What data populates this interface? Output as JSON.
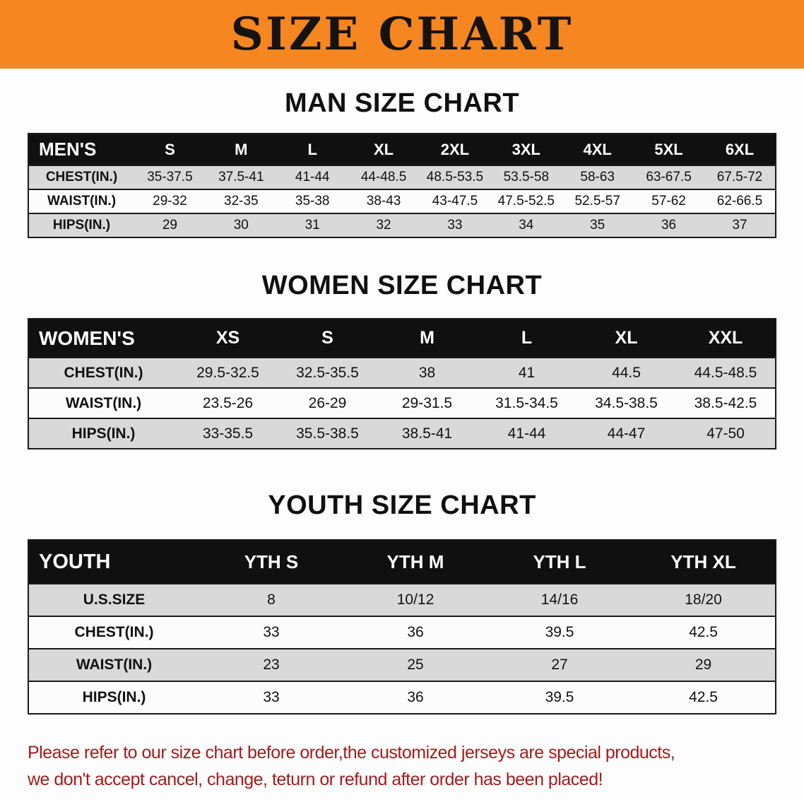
{
  "banner": {
    "title": "SIZE CHART",
    "background_color": "#F6861F",
    "text_color": "#151310"
  },
  "sections": [
    {
      "heading": "MAN SIZE CHART",
      "table": {
        "header_label": "MEN'S",
        "columns": [
          "S",
          "M",
          "L",
          "XL",
          "2XL",
          "3XL",
          "4XL",
          "5XL",
          "6XL"
        ],
        "rows": [
          {
            "label": "CHEST(IN.)",
            "values": [
              "35-37.5",
              "37.5-41",
              "41-44",
              "44-48.5",
              "48.5-53.5",
              "53.5-58",
              "58-63",
              "63-67.5",
              "67.5-72"
            ]
          },
          {
            "label": "WAIST(IN.)",
            "values": [
              "29-32",
              "32-35",
              "35-38",
              "38-43",
              "43-47.5",
              "47.5-52.5",
              "52.5-57",
              "57-62",
              "62-66.5"
            ]
          },
          {
            "label": "HIPS(IN.)",
            "values": [
              "29",
              "30",
              "31",
              "32",
              "33",
              "34",
              "35",
              "36",
              "37"
            ]
          }
        ]
      }
    },
    {
      "heading": "WOMEN SIZE CHART",
      "table": {
        "header_label": "WOMEN'S",
        "columns": [
          "XS",
          "S",
          "M",
          "L",
          "XL",
          "XXL"
        ],
        "rows": [
          {
            "label": "CHEST(IN.)",
            "values": [
              "29.5-32.5",
              "32.5-35.5",
              "38",
              "41",
              "44.5",
              "44.5-48.5"
            ]
          },
          {
            "label": "WAIST(IN.)",
            "values": [
              "23.5-26",
              "26-29",
              "29-31.5",
              "31.5-34.5",
              "34.5-38.5",
              "38.5-42.5"
            ]
          },
          {
            "label": "HIPS(IN.)",
            "values": [
              "33-35.5",
              "35.5-38.5",
              "38.5-41",
              "41-44",
              "44-47",
              "47-50"
            ]
          }
        ]
      }
    },
    {
      "heading": "YOUTH SIZE CHART",
      "table": {
        "header_label": "YOUTH",
        "columns": [
          "YTH S",
          "YTH M",
          "YTH L",
          "YTH XL"
        ],
        "rows": [
          {
            "label": "U.S.SIZE",
            "values": [
              "8",
              "10/12",
              "14/16",
              "18/20"
            ]
          },
          {
            "label": "CHEST(IN.)",
            "values": [
              "33",
              "36",
              "39.5",
              "42.5"
            ]
          },
          {
            "label": "WAIST(IN.)",
            "values": [
              "23",
              "25",
              "27",
              "29"
            ]
          },
          {
            "label": "HIPS(IN.)",
            "values": [
              "33",
              "36",
              "39.5",
              "42.5"
            ]
          }
        ]
      }
    }
  ],
  "footer": {
    "text_color": "#A21C1C",
    "lines": [
      "Please refer to our size chart before order,the customized jerseys are special products,",
      "we don't accept cancel, change, teturn or refund after order has been placed!"
    ]
  }
}
